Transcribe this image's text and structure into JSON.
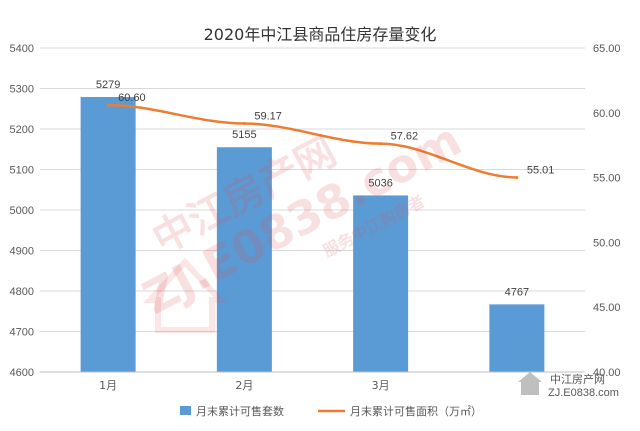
{
  "chart_data": {
    "type": "bar+line",
    "title": "2020年中江县商品住房存量变化",
    "categories": [
      "1月",
      "2月",
      "3月",
      ""
    ],
    "series": [
      {
        "name": "月末累计可售套数",
        "type": "bar",
        "axis": "left",
        "values": [
          5279,
          5155,
          5036,
          4767
        ],
        "color": "#5b9bd5"
      },
      {
        "name": "月末累计可售面积（万㎡）",
        "type": "line",
        "axis": "right",
        "values": [
          60.6,
          59.17,
          57.62,
          55.01
        ],
        "color": "#ed7d31"
      }
    ],
    "y_left": {
      "min": 4600,
      "max": 5400,
      "step": 100
    },
    "y_right": {
      "min": 40.0,
      "max": 65.0,
      "step": 5
    },
    "grid": true,
    "legend_position": "bottom",
    "watermark": {
      "text_main": "中江房产网",
      "text_domain": "ZJ.E0838.com",
      "text_sub": "服务中江购房者"
    }
  }
}
